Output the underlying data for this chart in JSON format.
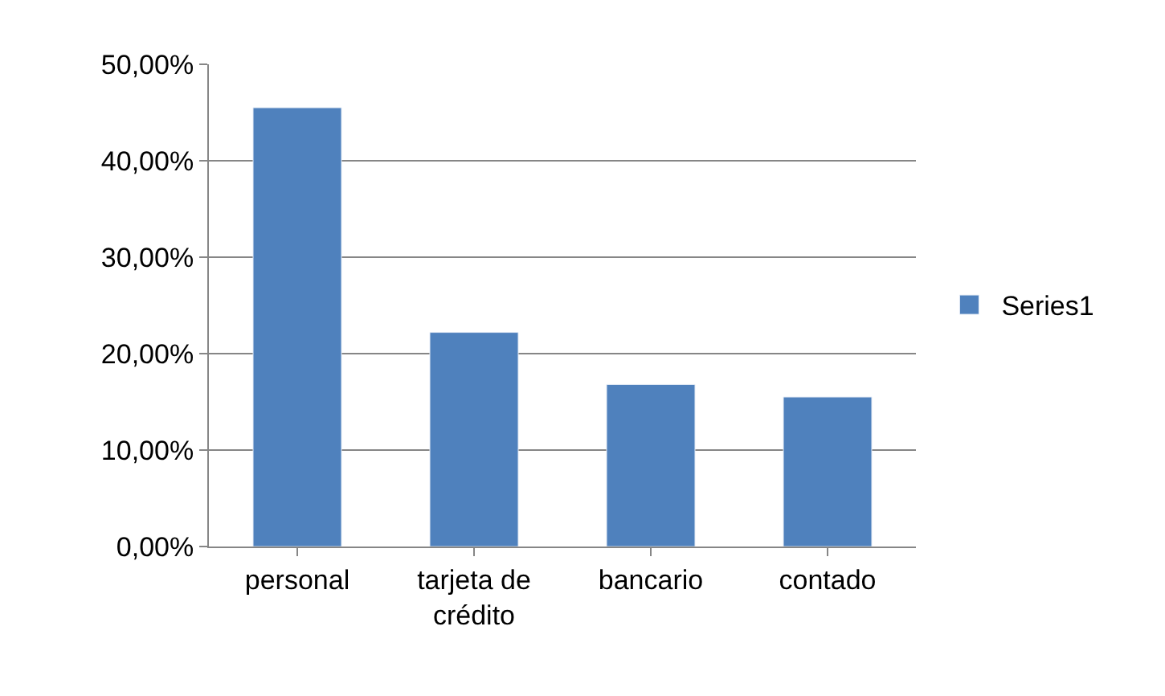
{
  "chart_data": {
    "type": "bar",
    "categories": [
      "personal",
      "tarjeta de crédito",
      "bancario",
      "contado"
    ],
    "series": [
      {
        "name": "Series1",
        "color": "#4f81bd",
        "values": [
          45.5,
          22.2,
          16.8,
          15.5
        ]
      }
    ],
    "ylim": [
      0,
      50
    ],
    "yticks": [
      {
        "value": 0,
        "label": "0,00%"
      },
      {
        "value": 10,
        "label": "10,00%"
      },
      {
        "value": 20,
        "label": "20,00%"
      },
      {
        "value": 30,
        "label": "30,00%"
      },
      {
        "value": 40,
        "label": "40,00%"
      },
      {
        "value": 50,
        "label": "50,00%"
      }
    ],
    "grid": "y",
    "legend": "right"
  }
}
